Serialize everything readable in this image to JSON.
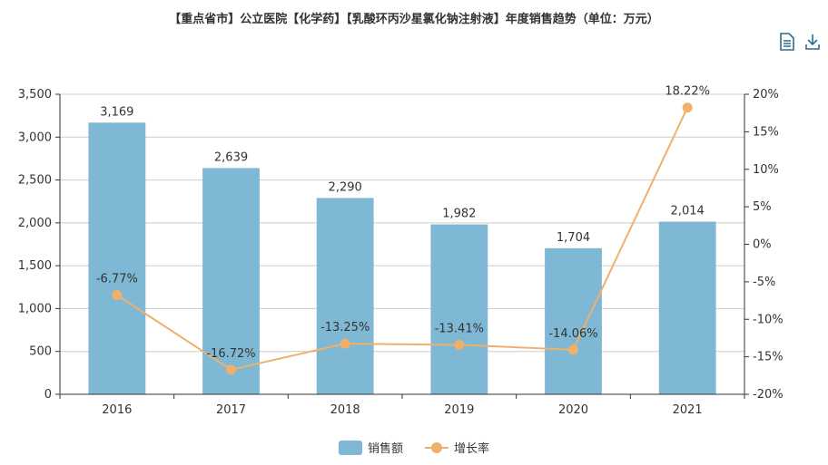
{
  "title": "【重点省市】公立医院【化学药】【乳酸环丙沙星氯化钠注射液】年度销售趋势（单位：万元）",
  "toolbox": {
    "data_view_icon": "data-view-icon",
    "download_icon": "download-icon"
  },
  "colors": {
    "bar": "#7fb8d4",
    "line": "#f0b06a",
    "axis": "#333333",
    "grid": "#cccccc"
  },
  "legend": {
    "bar_label": "销售额",
    "line_label": "增长率"
  },
  "chart_data": {
    "type": "bar",
    "categories": [
      "2016",
      "2017",
      "2018",
      "2019",
      "2020",
      "2021"
    ],
    "series": [
      {
        "name": "销售额",
        "type": "bar",
        "axis": "left",
        "values": [
          3169,
          2639,
          2290,
          1982,
          1704,
          2014
        ],
        "labels": [
          "3,169",
          "2,639",
          "2,290",
          "1,982",
          "1,704",
          "2,014"
        ]
      },
      {
        "name": "增长率",
        "type": "line",
        "axis": "right",
        "values": [
          -6.77,
          -16.72,
          -13.25,
          -13.41,
          -14.06,
          18.22
        ],
        "labels": [
          "-6.77%",
          "-16.72%",
          "-13.25%",
          "-13.41%",
          "-14.06%",
          "18.22%"
        ]
      }
    ],
    "y_left": {
      "min": 0,
      "max": 3500,
      "ticks": [
        "0",
        "500",
        "1,000",
        "1,500",
        "2,000",
        "2,500",
        "3,000",
        "3,500"
      ]
    },
    "y_right": {
      "min": -20,
      "max": 20,
      "ticks": [
        "-20%",
        "-15%",
        "-10%",
        "-5%",
        "0%",
        "5%",
        "10%",
        "15%",
        "20%"
      ]
    },
    "grid": true,
    "legend_position": "bottom-center"
  }
}
